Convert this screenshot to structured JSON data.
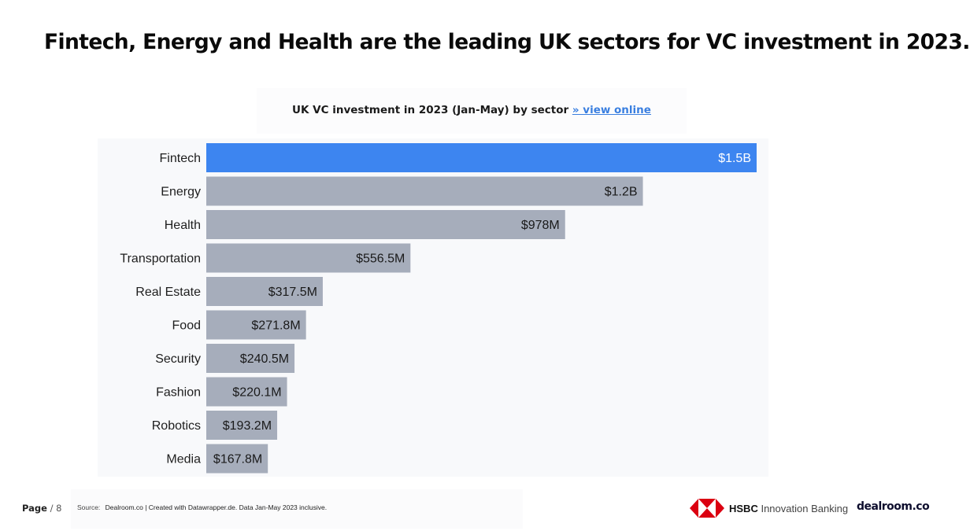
{
  "headline": "Fintech, Energy and Health are the leading UK sectors for VC investment in 2023.",
  "chart_header": {
    "title": "UK VC investment in 2023 (Jan-May) by sector",
    "link": "» view online"
  },
  "chart_data": {
    "type": "bar",
    "orientation": "horizontal",
    "title": "UK VC investment in 2023 (Jan-May) by sector",
    "xlabel": "",
    "ylabel": "",
    "unit": "USD millions",
    "xlim": [
      0,
      1500
    ],
    "grid": false,
    "categories": [
      "Fintech",
      "Energy",
      "Health",
      "Transportation",
      "Real Estate",
      "Food",
      "Security",
      "Fashion",
      "Robotics",
      "Media"
    ],
    "values": [
      1500,
      1190,
      978,
      556.5,
      317.5,
      271.8,
      240.5,
      220.1,
      193.2,
      167.8
    ],
    "value_labels": [
      "$1.5B",
      "$1.2B",
      "$978M",
      "$556.5M",
      "$317.5M",
      "$271.8M",
      "$240.5M",
      "$220.1M",
      "$193.2M",
      "$167.8M"
    ],
    "highlight": "Fintech",
    "colors": {
      "highlight": "#3d85f0",
      "default": "#a6adbb",
      "highlight_text": "#ffffff",
      "default_text": "#1a1a1a"
    }
  },
  "footer": {
    "page_label": "Page",
    "page_number": "/ 8",
    "source_label": "Source:",
    "source_text": "Dealroom.co | Created with Datawrapper.de. Data Jan-May 2023 inclusive.",
    "hsbc_brand": "HSBC",
    "hsbc_suffix": "Innovation Banking",
    "dealroom_logo": "dealroom.co"
  },
  "colors": {
    "hsbc_red": "#db0011",
    "link": "#3a7fe0"
  }
}
